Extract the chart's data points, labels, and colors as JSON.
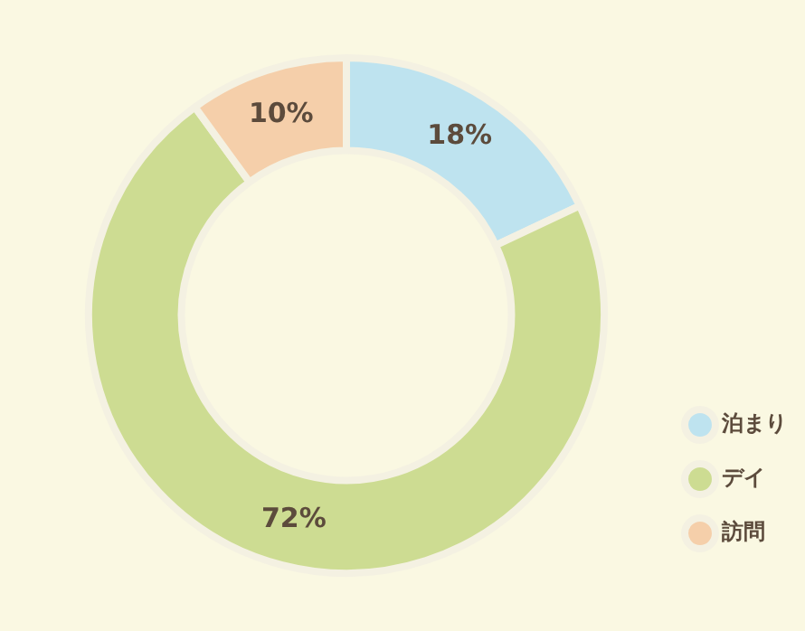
{
  "chart_data": {
    "type": "donut",
    "categories": [
      "泊まり",
      "デイ",
      "訪問"
    ],
    "values": [
      18,
      72,
      10
    ],
    "colors": [
      "#bee3ef",
      "#cddc92",
      "#f5cfaa"
    ],
    "value_labels": [
      "18%",
      "72%",
      "10%"
    ],
    "legend": "bottom right"
  }
}
